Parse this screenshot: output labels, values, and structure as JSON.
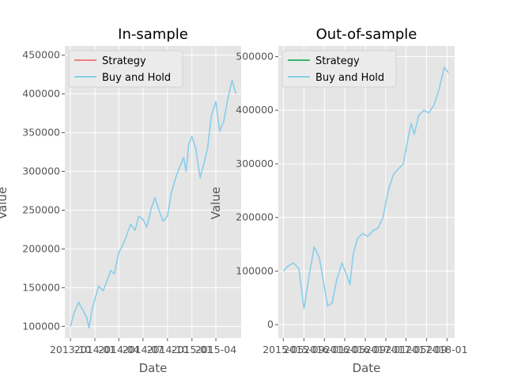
{
  "chart_data": [
    {
      "type": "line",
      "title": "In-sample",
      "xlabel": "Date",
      "ylabel": "Value",
      "ylim": [
        85000,
        462000
      ],
      "xlim": [
        "2013-09-10",
        "2015-07-05"
      ],
      "x_ticks": [
        "2013-10",
        "2014-01",
        "2014-04",
        "2014-07",
        "2014-10",
        "2015-01",
        "2015-04"
      ],
      "y_ticks": [
        100000,
        150000,
        200000,
        250000,
        300000,
        350000,
        400000,
        450000
      ],
      "y_tick_labels": [
        "100000",
        "150000",
        "200000",
        "250000",
        "300000",
        "350000",
        "400000",
        "450000"
      ],
      "grid": true,
      "legend_position": "upper-left",
      "series": [
        {
          "name": "Strategy",
          "color": "#f08080",
          "x": [],
          "values": []
        },
        {
          "name": "Buy and Hold",
          "color": "#87ceeb",
          "x": [
            "2013-10-01",
            "2013-10-15",
            "2013-11-01",
            "2013-11-15",
            "2013-12-01",
            "2013-12-10",
            "2013-12-20",
            "2014-01-01",
            "2014-01-15",
            "2014-02-01",
            "2014-02-15",
            "2014-03-01",
            "2014-03-15",
            "2014-04-01",
            "2014-04-15",
            "2014-05-01",
            "2014-05-15",
            "2014-06-01",
            "2014-06-15",
            "2014-07-01",
            "2014-07-15",
            "2014-08-01",
            "2014-08-15",
            "2014-09-01",
            "2014-09-15",
            "2014-10-01",
            "2014-10-15",
            "2014-11-01",
            "2014-11-15",
            "2014-12-01",
            "2014-12-10",
            "2014-12-20",
            "2015-01-01",
            "2015-01-15",
            "2015-02-01",
            "2015-02-15",
            "2015-03-01",
            "2015-03-15",
            "2015-04-01",
            "2015-04-15",
            "2015-05-01",
            "2015-05-15",
            "2015-06-01",
            "2015-06-15"
          ],
          "values": [
            100000,
            118000,
            131000,
            122000,
            112000,
            98000,
            120000,
            135000,
            152000,
            146000,
            158000,
            172000,
            168000,
            196000,
            204000,
            218000,
            232000,
            224000,
            242000,
            238000,
            228000,
            252000,
            266000,
            248000,
            236000,
            242000,
            272000,
            292000,
            305000,
            318000,
            300000,
            335000,
            345000,
            330000,
            292000,
            310000,
            330000,
            372000,
            390000,
            352000,
            365000,
            392000,
            418000,
            400000
          ]
        }
      ]
    },
    {
      "type": "line",
      "title": "Out-of-sample",
      "xlabel": "Date",
      "ylabel": "Value",
      "ylim": [
        -25000,
        520000
      ],
      "xlim": [
        "2015-04-01",
        "2018-02-15"
      ],
      "x_ticks": [
        "2015-05",
        "2015-09",
        "2016-01",
        "2016-05",
        "2016-09",
        "2017-01",
        "2017-05",
        "2017-09",
        "2018-01"
      ],
      "y_ticks": [
        0,
        100000,
        200000,
        300000,
        400000,
        500000
      ],
      "y_tick_labels": [
        "0",
        "100000",
        "200000",
        "300000",
        "400000",
        "500000"
      ],
      "grid": true,
      "legend_position": "upper-left",
      "series": [
        {
          "name": "Strategy",
          "color": "#3cb371",
          "x": [],
          "values": []
        },
        {
          "name": "Buy and Hold",
          "color": "#87ceeb",
          "x": [
            "2015-05-01",
            "2015-06-01",
            "2015-07-01",
            "2015-08-01",
            "2015-08-20",
            "2015-09-01",
            "2015-10-01",
            "2015-11-01",
            "2015-12-01",
            "2016-01-01",
            "2016-01-20",
            "2016-02-15",
            "2016-03-15",
            "2016-04-15",
            "2016-05-15",
            "2016-06-01",
            "2016-06-20",
            "2016-07-15",
            "2016-08-15",
            "2016-09-15",
            "2016-10-15",
            "2016-11-15",
            "2016-12-15",
            "2017-01-15",
            "2017-02-15",
            "2017-03-15",
            "2017-04-15",
            "2017-05-15",
            "2017-06-01",
            "2017-06-20",
            "2017-07-15",
            "2017-08-15",
            "2017-09-15",
            "2017-10-15",
            "2017-11-15",
            "2017-12-15",
            "2018-01-10"
          ],
          "values": [
            100000,
            110000,
            115000,
            105000,
            60000,
            30000,
            90000,
            145000,
            125000,
            70000,
            35000,
            40000,
            85000,
            115000,
            90000,
            75000,
            130000,
            160000,
            170000,
            165000,
            175000,
            180000,
            200000,
            250000,
            280000,
            290000,
            300000,
            350000,
            375000,
            355000,
            390000,
            400000,
            395000,
            410000,
            440000,
            480000,
            470000
          ]
        }
      ]
    }
  ]
}
